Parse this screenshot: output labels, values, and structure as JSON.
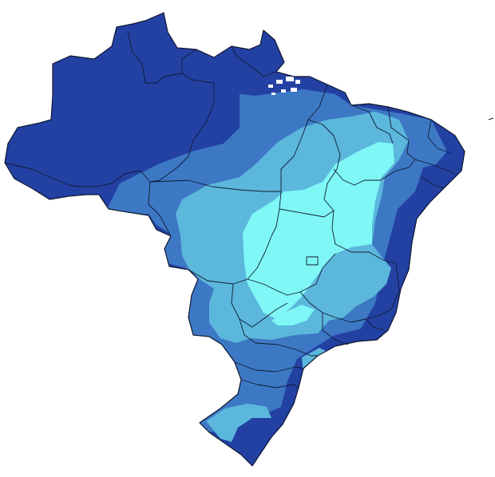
{
  "map": {
    "type": "choropleth",
    "region": "Brazil",
    "colors": {
      "class_1_darkest": "#2341a3",
      "class_2": "#3d78c4",
      "class_3": "#5bb7dc",
      "class_4_lightest": "#7ff7f7",
      "border": "#101a33",
      "background": "#ffffff"
    }
  }
}
